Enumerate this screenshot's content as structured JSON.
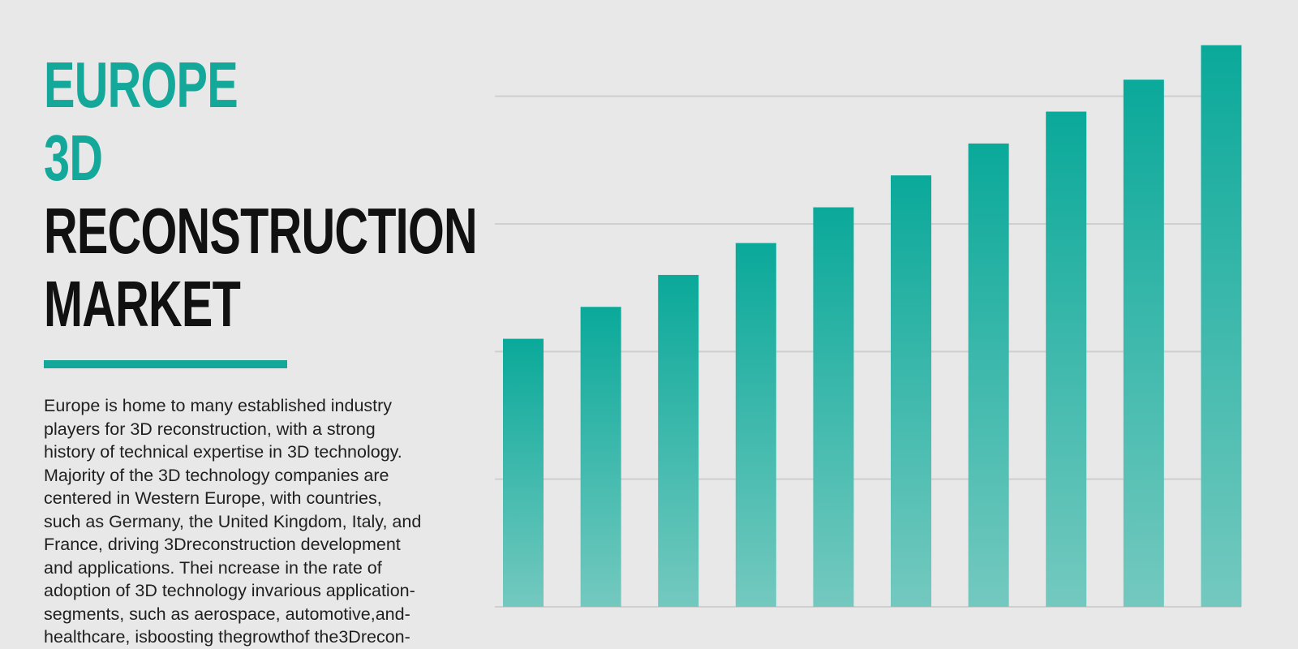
{
  "title": {
    "line1": "EUROPE",
    "line2": "3D",
    "line3": "RECONSTRUCTION",
    "line4": "MARKET"
  },
  "description": "Europe is home to many established industry\nplayers for 3D reconstruction, with a strong\nhistory of technical expertise in 3D technology.\nMajority of the 3D technology companies are\ncentered in Western Europe, with countries,\nsuch as Germany, the United Kingdom, Italy, and\nFrance, driving 3Dreconstruction development\nand applications. Thei ncrease in the rate of\nadoption of 3D technology invarious application-\nsegments, such as aerospace, automotive,and-\nhealthcare, isboosting thegrowthof the3Drecon-",
  "colors": {
    "accent": "#14a89b",
    "title_dark": "#111111",
    "bar_top": "#0aa99a",
    "bar_bottom": "#74c9bf",
    "gridline": "#cfcfcf",
    "background": "#e8e8e8"
  },
  "chart_data": {
    "type": "bar",
    "categories": [
      "",
      "",
      "",
      "",
      "",
      "",
      "",
      "",
      "",
      ""
    ],
    "values": [
      2.1,
      2.35,
      2.6,
      2.85,
      3.13,
      3.38,
      3.63,
      3.88,
      4.13,
      4.4
    ],
    "ylim": [
      0,
      4.5
    ],
    "grid": true,
    "title": "",
    "xlabel": "",
    "ylabel": ""
  }
}
